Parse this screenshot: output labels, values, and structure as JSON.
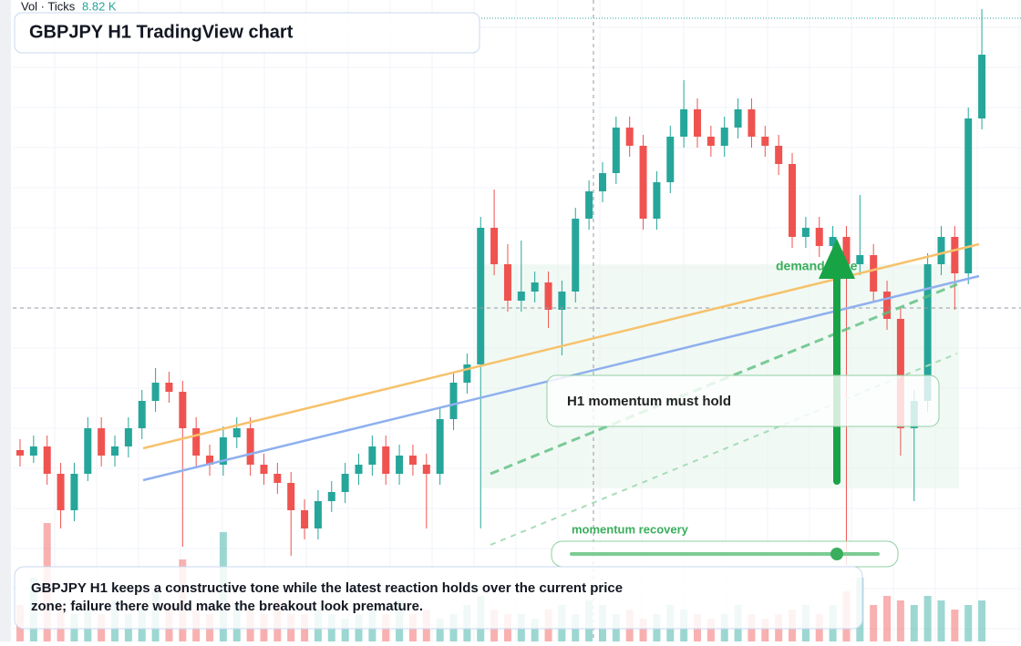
{
  "header": {
    "indicator": "Vol · Ticks",
    "indicator_value": "8.82 K",
    "title": "GBPJPY H1 TradingView chart"
  },
  "annotations": {
    "zone": "demand zone",
    "box": "H1 momentum must hold",
    "slider": "momentum recovery",
    "caption": "GBPJPY H1 keeps a constructive tone while the latest reaction holds over the current price zone; failure there would make the breakout look premature."
  },
  "chart_data": {
    "type": "candlestick",
    "ylim": [
      0,
      704
    ],
    "up_color": "#26a69a",
    "down_color": "#ef5350",
    "open": [
      210,
      204,
      214,
      184,
      144,
      184,
      234,
      204,
      214,
      234,
      264,
      284,
      274,
      234,
      204,
      194,
      224,
      234,
      194,
      184,
      174,
      144,
      124,
      154,
      164,
      184,
      194,
      214,
      184,
      204,
      194,
      184,
      244,
      284,
      304,
      454,
      414,
      374,
      384,
      394,
      364,
      384,
      464,
      494,
      514,
      564,
      544,
      464,
      504,
      554,
      584,
      554,
      544,
      564,
      584,
      554,
      544,
      524,
      444,
      454,
      434,
      444,
      414,
      424,
      384,
      354,
      234,
      264,
      414,
      444,
      404,
      574
    ],
    "high": [
      222,
      226,
      226,
      196,
      196,
      246,
      246,
      226,
      246,
      276,
      300,
      296,
      286,
      246,
      216,
      236,
      246,
      246,
      206,
      196,
      186,
      156,
      166,
      176,
      196,
      206,
      226,
      226,
      216,
      216,
      206,
      256,
      296,
      316,
      466,
      496,
      436,
      440,
      406,
      406,
      396,
      476,
      506,
      526,
      576,
      576,
      556,
      516,
      566,
      616,
      596,
      566,
      576,
      596,
      596,
      566,
      556,
      536,
      466,
      466,
      456,
      456,
      490,
      436,
      396,
      366,
      276,
      426,
      456,
      456,
      586,
      694
    ],
    "low": [
      192,
      196,
      172,
      124,
      132,
      176,
      192,
      192,
      202,
      222,
      252,
      262,
      104,
      192,
      182,
      182,
      212,
      182,
      172,
      162,
      94,
      112,
      112,
      142,
      152,
      172,
      182,
      172,
      172,
      182,
      124,
      172,
      232,
      272,
      124,
      402,
      362,
      362,
      372,
      344,
      314,
      372,
      452,
      482,
      502,
      532,
      452,
      452,
      492,
      542,
      542,
      532,
      532,
      552,
      542,
      532,
      512,
      432,
      432,
      422,
      422,
      84,
      402,
      372,
      342,
      204,
      154,
      252,
      402,
      364,
      392,
      562
    ],
    "close": [
      204,
      214,
      184,
      144,
      184,
      234,
      204,
      214,
      234,
      264,
      284,
      274,
      234,
      204,
      194,
      224,
      234,
      194,
      184,
      174,
      144,
      124,
      154,
      164,
      184,
      194,
      214,
      184,
      204,
      194,
      184,
      244,
      284,
      304,
      454,
      414,
      374,
      384,
      394,
      364,
      384,
      464,
      494,
      514,
      564,
      544,
      464,
      504,
      554,
      584,
      554,
      544,
      564,
      584,
      554,
      544,
      524,
      444,
      454,
      434,
      444,
      414,
      424,
      384,
      354,
      234,
      264,
      414,
      444,
      404,
      574,
      644
    ],
    "volume": [
      40,
      70,
      130,
      40,
      30,
      35,
      30,
      45,
      30,
      35,
      55,
      40,
      90,
      35,
      30,
      120,
      40,
      35,
      30,
      45,
      30,
      30,
      35,
      30,
      25,
      30,
      35,
      30,
      45,
      30,
      35,
      25,
      30,
      40,
      50,
      35,
      30,
      30,
      25,
      35,
      40,
      30,
      45,
      40,
      30,
      35,
      25,
      30,
      40,
      35,
      30,
      25,
      30,
      40,
      30,
      25,
      30,
      35,
      40,
      30,
      40,
      55,
      70,
      40,
      50,
      45,
      40,
      50,
      45,
      35,
      40,
      45
    ]
  }
}
